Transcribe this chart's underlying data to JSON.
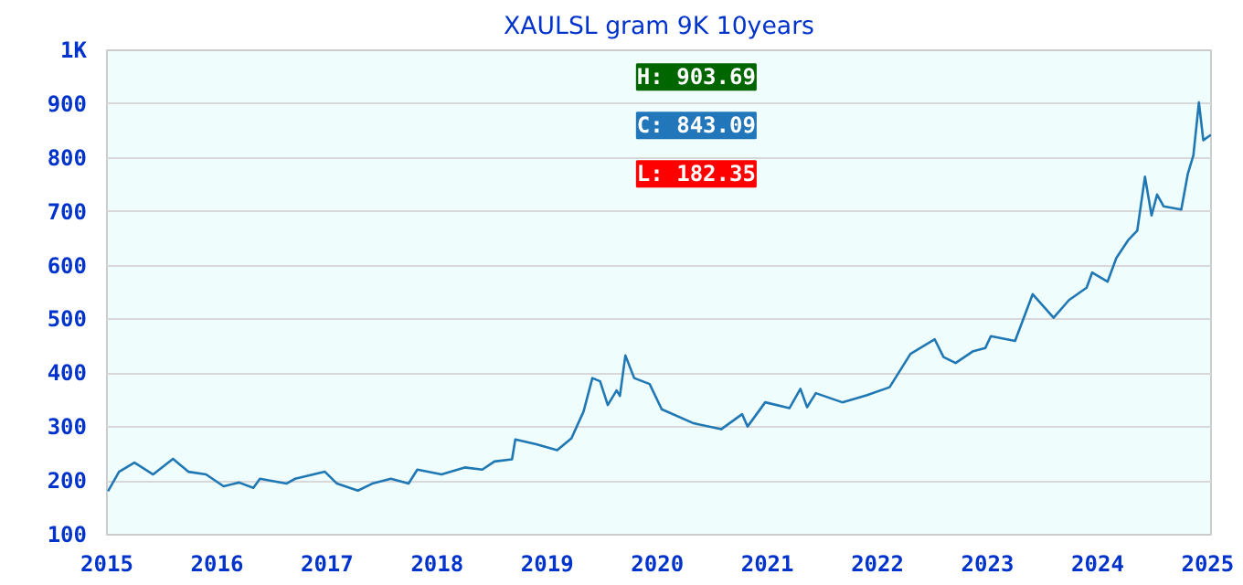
{
  "chart_data": {
    "type": "line",
    "title": "XAULSL gram 9K 10years",
    "x": [
      2015.01,
      2015.11,
      2015.25,
      2015.42,
      2015.6,
      2015.74,
      2015.9,
      2016.06,
      2016.2,
      2016.33,
      2016.39,
      2016.63,
      2016.71,
      2016.98,
      2017.09,
      2017.28,
      2017.41,
      2017.58,
      2017.74,
      2017.82,
      2018.04,
      2018.25,
      2018.41,
      2018.52,
      2018.68,
      2018.71,
      2018.9,
      2019.09,
      2019.22,
      2019.33,
      2019.41,
      2019.48,
      2019.55,
      2019.63,
      2019.66,
      2019.71,
      2019.79,
      2019.93,
      2020.04,
      2020.33,
      2020.58,
      2020.77,
      2020.82,
      2020.98,
      2021.2,
      2021.3,
      2021.36,
      2021.44,
      2021.68,
      2021.9,
      2022.11,
      2022.3,
      2022.52,
      2022.6,
      2022.71,
      2022.87,
      2022.98,
      2023.03,
      2023.25,
      2023.41,
      2023.6,
      2023.74,
      2023.9,
      2023.95,
      2024.09,
      2024.17,
      2024.28,
      2024.36,
      2024.43,
      2024.49,
      2024.54,
      2024.6,
      2024.76,
      2024.82,
      2024.87,
      2024.92,
      2024.96,
      2025.03
    ],
    "series": [
      {
        "color": "#1f77b4",
        "values": [
          181,
          217,
          234,
          212,
          241,
          217,
          212,
          190,
          197,
          187,
          204,
          195,
          204,
          217,
          195,
          182,
          195,
          204,
          195,
          221,
          212,
          225,
          221,
          236,
          240,
          277,
          268,
          257,
          279,
          329,
          391,
          385,
          341,
          368,
          358,
          433,
          391,
          380,
          333,
          307,
          296,
          324,
          301,
          346,
          335,
          371,
          337,
          363,
          346,
          359,
          374,
          436,
          463,
          430,
          419,
          441,
          447,
          469,
          460,
          547,
          503,
          536,
          559,
          587,
          570,
          614,
          648,
          665,
          765,
          693,
          732,
          710,
          704,
          771,
          805,
          903,
          833,
          843
        ]
      }
    ],
    "xlim": [
      2015,
      2025.03
    ],
    "xticks": [
      2015,
      2016,
      2017,
      2018,
      2019,
      2020,
      2021,
      2022,
      2023,
      2024,
      2025
    ],
    "ylim": [
      100,
      1000
    ],
    "yticks": [
      100,
      200,
      300,
      400,
      500,
      600,
      700,
      800,
      900,
      {
        "value": 1000,
        "label": "1K"
      }
    ],
    "grid": "y",
    "annotations": [
      "H: 903.69",
      "C: 843.09",
      "L: 182.35"
    ]
  }
}
